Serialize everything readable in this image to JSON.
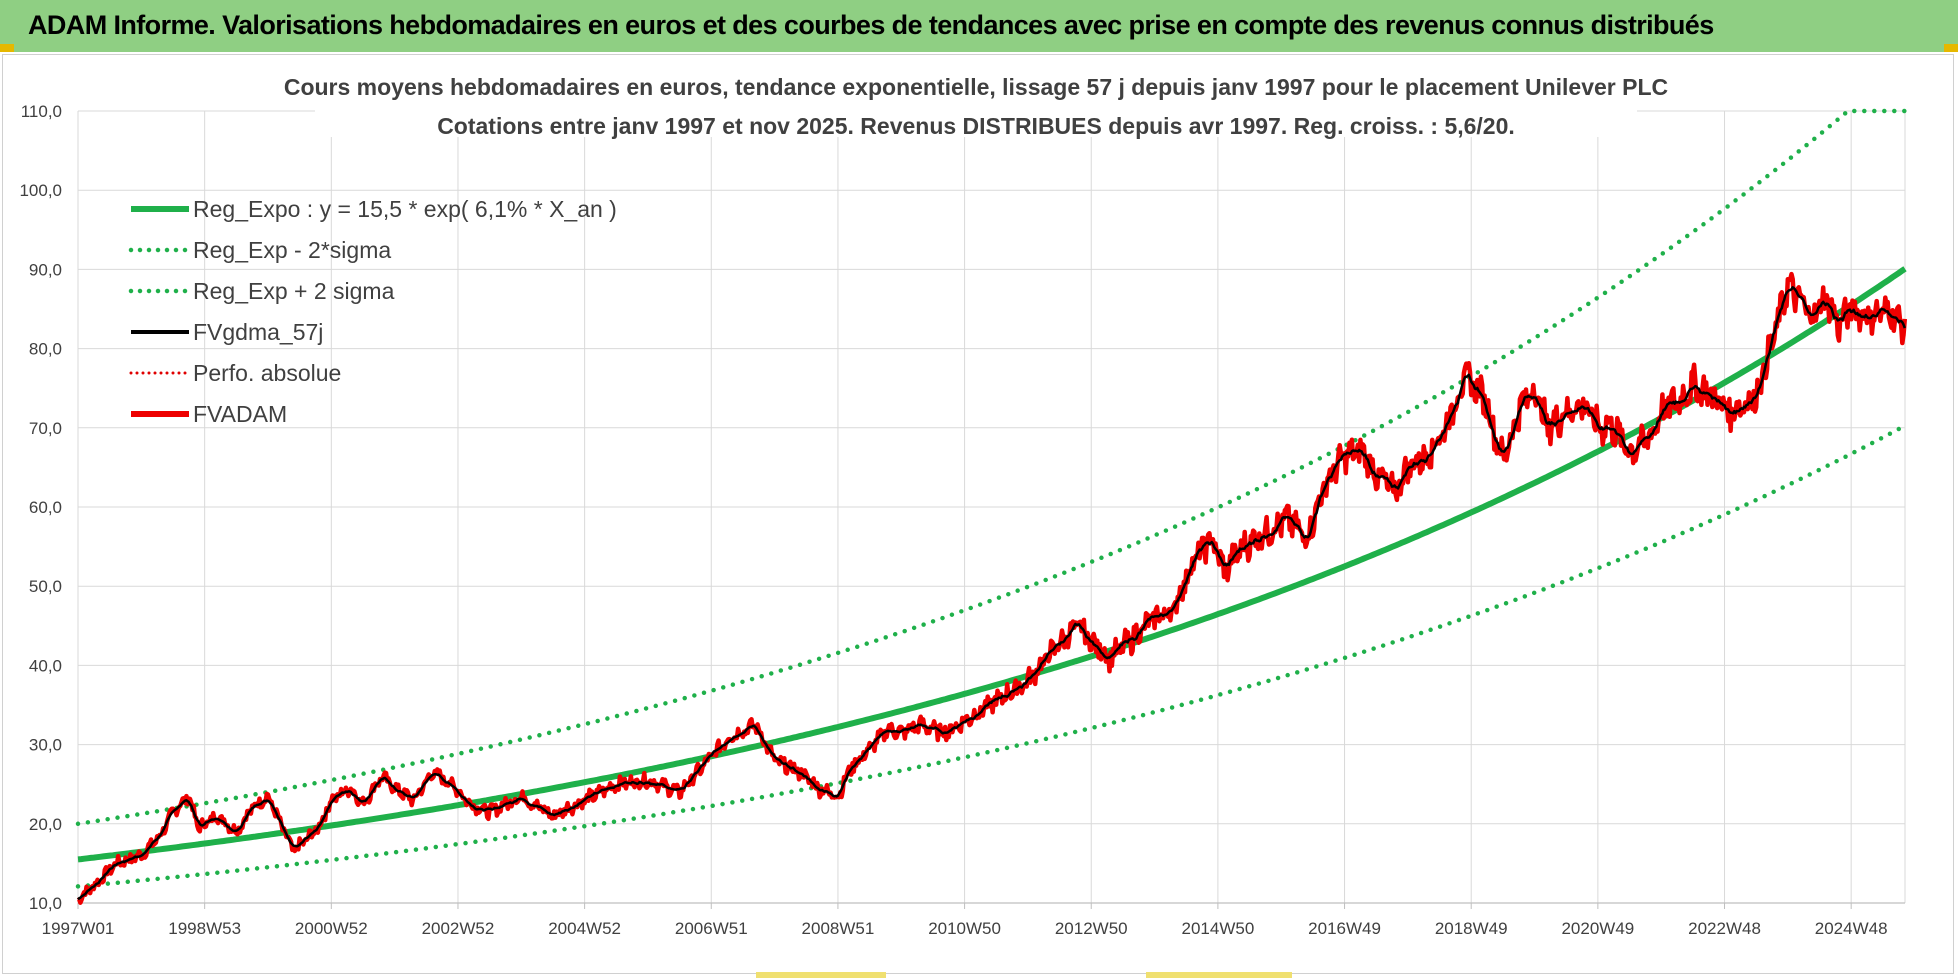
{
  "header": {
    "title": "ADAM Informe. Valorisations hebdomadaires en euros et des courbes de tendances avec prise en compte des revenus connus distribués"
  },
  "colors": {
    "header_bg": "#8fcf83",
    "regression": "#1fb04a",
    "sigma": "#1fb04a",
    "fvgdma": "#000000",
    "perfo": "#e00000",
    "fvadam": "#ee0000",
    "grid": "#d9d9d9"
  },
  "chart_data": {
    "type": "line",
    "title_line1": "Cours moyens hebdomadaires en euros, tendance exponentielle, lissage 57 j depuis janv 1997  pour le placement Unilever PLC",
    "title_line2": "Cotations entre janv 1997 et nov 2025. Revenus DISTRIBUES depuis avr 1997. Reg. croiss. : 5,6/20.",
    "xlabel": "",
    "ylabel": "",
    "ylim": [
      10,
      110
    ],
    "xlim": [
      1997.0,
      2025.85
    ],
    "grid": true,
    "legend_position": "top-left",
    "y_ticks": [
      "10,0",
      "20,0",
      "30,0",
      "40,0",
      "50,0",
      "60,0",
      "70,0",
      "80,0",
      "90,0",
      "100,0",
      "110,0"
    ],
    "y_tick_values": [
      10,
      20,
      30,
      40,
      50,
      60,
      70,
      80,
      90,
      100,
      110
    ],
    "x_ticks": [
      "1997W01",
      "1998W53",
      "2000W52",
      "2002W52",
      "2004W52",
      "2006W51",
      "2008W51",
      "2010W50",
      "2012W50",
      "2014W50",
      "2016W49",
      "2018W49",
      "2020W49",
      "2022W48",
      "2024W48"
    ],
    "x_tick_values": [
      1997.0,
      1999.0,
      2001.0,
      2003.0,
      2005.0,
      2007.0,
      2009.0,
      2011.0,
      2013.0,
      2015.0,
      2017.0,
      2019.0,
      2021.0,
      2023.0,
      2025.0
    ],
    "regression": {
      "a": 15.5,
      "rate": 0.061,
      "x0": 1997.0
    },
    "sigma_factor_lower": 0.78,
    "sigma_factor_upper": 1.29,
    "clip_max": 110,
    "series": [
      {
        "name": "Reg_Expo : y = 15,5 * exp( 6,1% *  X_an )",
        "style": "solid-thick",
        "color": "#1fb04a"
      },
      {
        "name": "Reg_Exp - 2*sigma",
        "style": "dotted",
        "color": "#1fb04a"
      },
      {
        "name": "Reg_Exp + 2 sigma",
        "style": "dotted",
        "color": "#1fb04a"
      },
      {
        "name": "FVgdma_57j",
        "style": "solid",
        "color": "#000000"
      },
      {
        "name": "Perfo. absolue",
        "style": "dotted-thin",
        "color": "#e00000"
      },
      {
        "name": "FVADAM",
        "style": "solid-thick",
        "color": "#ee0000"
      }
    ],
    "fvadam_anchors": {
      "x": [
        1997.0,
        1997.3,
        1997.6,
        1998.0,
        1998.3,
        1998.5,
        1998.75,
        1998.9,
        1999.2,
        1999.5,
        1999.75,
        2000.0,
        2000.2,
        2000.4,
        2000.6,
        2000.8,
        2001.0,
        2001.3,
        2001.5,
        2001.8,
        2002.0,
        2002.3,
        2002.6,
        2002.9,
        2003.2,
        2003.5,
        2004.0,
        2004.5,
        2005.0,
        2005.5,
        2006.0,
        2006.5,
        2007.0,
        2007.3,
        2007.7,
        2008.0,
        2008.4,
        2008.7,
        2009.0,
        2009.2,
        2009.5,
        2009.8,
        2010.0,
        2010.3,
        2010.7,
        2011.0,
        2011.5,
        2012.0,
        2012.4,
        2012.8,
        2013.0,
        2013.3,
        2013.6,
        2014.0,
        2014.3,
        2014.6,
        2014.9,
        2015.1,
        2015.4,
        2015.8,
        2016.1,
        2016.4,
        2016.7,
        2017.0,
        2017.3,
        2017.5,
        2017.8,
        2018.0,
        2018.3,
        2018.6,
        2018.9,
        2019.2,
        2019.5,
        2019.8,
        2020.0,
        2020.2,
        2020.5,
        2020.8,
        2021.0,
        2021.2,
        2021.5,
        2021.8,
        2022.0,
        2022.3,
        2022.5,
        2022.8,
        2023.1,
        2023.5,
        2023.8,
        2024.0,
        2024.2,
        2024.4,
        2024.6,
        2024.8,
        2025.0,
        2025.3,
        2025.6,
        2025.85
      ],
      "y": [
        10.5,
        12.5,
        15.0,
        16.0,
        18.5,
        21.5,
        23.5,
        19.5,
        21.0,
        19.0,
        22.0,
        23.5,
        20.0,
        16.5,
        18.0,
        19.5,
        23.0,
        24.5,
        22.5,
        26.0,
        24.5,
        23.0,
        26.5,
        25.0,
        22.5,
        21.5,
        23.5,
        21.0,
        23.0,
        25.0,
        25.5,
        24.0,
        28.5,
        31.0,
        32.5,
        28.0,
        26.5,
        24.5,
        23.5,
        27.0,
        29.5,
        32.0,
        31.5,
        32.5,
        31.5,
        33.0,
        35.5,
        38.0,
        42.0,
        45.0,
        43.0,
        41.0,
        43.0,
        46.0,
        47.0,
        53.0,
        56.0,
        52.0,
        55.0,
        57.0,
        58.5,
        56.0,
        63.0,
        66.5,
        67.0,
        64.0,
        62.0,
        65.0,
        66.5,
        70.0,
        76.5,
        74.0,
        66.0,
        73.0,
        75.0,
        70.0,
        72.0,
        73.0,
        70.0,
        70.5,
        67.0,
        68.5,
        72.0,
        73.5,
        75.5,
        74.0,
        72.0,
        74.0,
        82.0,
        88.0,
        86.0,
        84.0,
        86.5,
        83.0,
        85.0,
        84.0,
        85.0,
        82.5
      ]
    },
    "fvadam_noise": {
      "anchors_x": [
        1997,
        2010,
        2014,
        2016,
        2018,
        2020,
        2024,
        2026
      ],
      "amplitude": [
        0.6,
        0.8,
        1.4,
        1.6,
        1.6,
        1.8,
        1.8,
        1.6
      ]
    }
  }
}
